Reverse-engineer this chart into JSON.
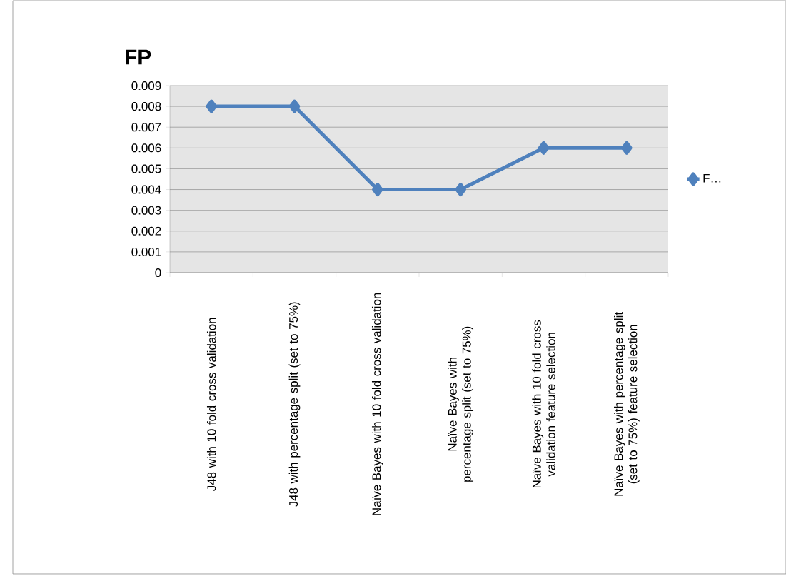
{
  "chart_data": {
    "type": "line",
    "title": "FP",
    "categories": [
      "J48 with 10 fold cross validation",
      "J48 with percentage split (set to 75%)",
      "Naïve Bayes with 10 fold cross validation",
      "Naïve Bayes with percentage split (set to 75%)",
      "Naïve Bayes with 10 fold cross validation feature selection",
      "Naïve Bayes with percentage split (set to 75%) feature selection"
    ],
    "series": [
      {
        "name": "F…",
        "color": "#4f81bd",
        "values": [
          0.008,
          0.008,
          0.004,
          0.004,
          0.006,
          0.006
        ]
      }
    ],
    "ylim": [
      0,
      0.009
    ],
    "yticks": [
      0,
      0.001,
      0.002,
      0.003,
      0.004,
      0.005,
      0.006,
      0.007,
      0.008,
      0.009
    ],
    "grid": "y",
    "legend": "right",
    "marker": "diamond",
    "line_style": "solid"
  }
}
